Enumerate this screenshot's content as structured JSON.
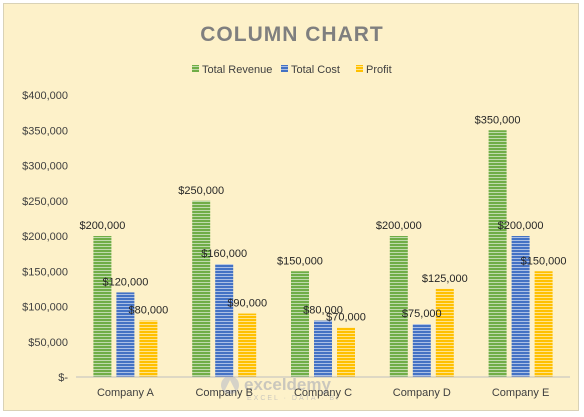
{
  "chart_data": {
    "type": "bar",
    "title": "COLUMN CHART",
    "categories": [
      "Company A",
      "Company B",
      "Company C",
      "Company D",
      "Company E"
    ],
    "series": [
      {
        "name": "Total Revenue",
        "color": "#70ad47",
        "values": [
          200000,
          250000,
          150000,
          200000,
          350000
        ]
      },
      {
        "name": "Total Cost",
        "color": "#4472c4",
        "values": [
          120000,
          160000,
          80000,
          75000,
          200000
        ]
      },
      {
        "name": "Profit",
        "color": "#ffc000",
        "values": [
          80000,
          90000,
          70000,
          125000,
          150000
        ]
      }
    ],
    "data_labels": [
      [
        "$200,000",
        "$250,000",
        "$150,000",
        "$200,000",
        "$350,000"
      ],
      [
        "$120,000",
        "$160,000",
        "$80,000",
        "$75,000",
        "$200,000"
      ],
      [
        "$80,000",
        "$90,000",
        "$70,000",
        "$125,000",
        "$150,000"
      ]
    ],
    "ylim": [
      0,
      400000
    ],
    "y_ticks": [
      0,
      50000,
      100000,
      150000,
      200000,
      250000,
      300000,
      350000,
      400000
    ],
    "y_tick_labels": [
      "$-",
      "$50,000",
      "$100,000",
      "$150,000",
      "$200,000",
      "$250,000",
      "$300,000",
      "$350,000",
      "$400,000"
    ],
    "legend_position": "top",
    "grid": false,
    "background_color": "#fdf1c9",
    "bar_fill": "horizontal-stripes"
  },
  "watermark": {
    "brand": "exceldemy",
    "tagline": "EXCEL · DATA · BI"
  }
}
